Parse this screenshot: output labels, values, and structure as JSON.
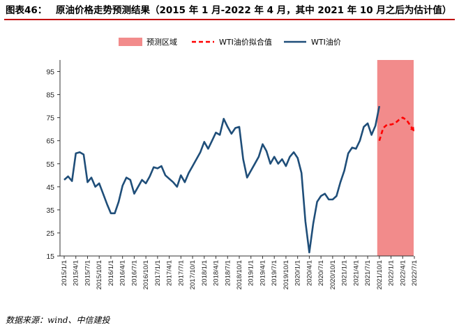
{
  "header": {
    "figure_label": "图表46：",
    "title": "原油价格走势预测结果（2015 年 1 月-2022 年 4 月，其中 2021 年 10 月之后为估计值）"
  },
  "legend": {
    "forecast_region": "预测区域",
    "wti_fitted": "WTI油价拟合值",
    "wti_price": "WTI油价"
  },
  "source": "数据来源：wind、中信建投",
  "colors": {
    "title_rule": "#c00000",
    "forecast_region": "#f28b8b",
    "wti_fitted": "#ff0000",
    "wti_price": "#1f4e79"
  },
  "chart_data": {
    "type": "line",
    "title": "",
    "xlabel": "",
    "ylabel": "",
    "ylim": [
      15,
      100
    ],
    "yticks": [
      15,
      25,
      35,
      45,
      55,
      65,
      75,
      85,
      95
    ],
    "xtick_labels": [
      "2015/1/1",
      "2015/4/1",
      "2015/7/1",
      "2015/10/1",
      "2016/1/1",
      "2016/4/1",
      "2016/7/1",
      "2016/10/1",
      "2017/1/1",
      "2017/4/1",
      "2017/7/1",
      "2017/10/1",
      "2018/1/1",
      "2018/4/1",
      "2018/7/1",
      "2018/10/1",
      "2019/1/1",
      "2019/4/1",
      "2019/7/1",
      "2019/10/1",
      "2020/1/1",
      "2020/4/1",
      "2020/7/1",
      "2020/10/1",
      "2021/1/1",
      "2021/4/1",
      "2021/7/1",
      "2021/10/1",
      "2022/1/1",
      "2022/4/1",
      "2022/7/1"
    ],
    "forecast_region": {
      "start": "2021/10/1",
      "end": "2022/7/1"
    },
    "series": [
      {
        "name": "WTI油价",
        "style": "solid",
        "x": [
          "2015/1",
          "2015/2",
          "2015/3",
          "2015/4",
          "2015/5",
          "2015/6",
          "2015/7",
          "2015/8",
          "2015/9",
          "2015/10",
          "2015/11",
          "2015/12",
          "2016/1",
          "2016/2",
          "2016/3",
          "2016/4",
          "2016/5",
          "2016/6",
          "2016/7",
          "2016/8",
          "2016/9",
          "2016/10",
          "2016/11",
          "2016/12",
          "2017/1",
          "2017/2",
          "2017/3",
          "2017/4",
          "2017/5",
          "2017/6",
          "2017/7",
          "2017/8",
          "2017/9",
          "2017/10",
          "2017/11",
          "2017/12",
          "2018/1",
          "2018/2",
          "2018/3",
          "2018/4",
          "2018/5",
          "2018/6",
          "2018/7",
          "2018/8",
          "2018/9",
          "2018/10",
          "2018/11",
          "2018/12",
          "2019/1",
          "2019/2",
          "2019/3",
          "2019/4",
          "2019/5",
          "2019/6",
          "2019/7",
          "2019/8",
          "2019/9",
          "2019/10",
          "2019/11",
          "2019/12",
          "2020/1",
          "2020/2",
          "2020/3",
          "2020/4",
          "2020/5",
          "2020/6",
          "2020/7",
          "2020/8",
          "2020/9",
          "2020/10",
          "2020/11",
          "2020/12",
          "2021/1",
          "2021/2",
          "2021/3",
          "2021/4",
          "2021/5",
          "2021/6",
          "2021/7",
          "2021/8",
          "2021/9",
          "2021/10"
        ],
        "values": [
          48,
          49.5,
          47.5,
          59.5,
          60,
          59,
          47,
          49,
          45,
          46.5,
          42,
          37.5,
          33.5,
          33.5,
          38.5,
          45.5,
          49,
          48,
          42,
          45,
          48,
          46.5,
          49.5,
          53.5,
          53,
          54,
          50,
          48.5,
          47,
          45,
          50,
          47,
          51,
          54,
          57,
          60,
          64.5,
          61.5,
          65,
          68.5,
          67.5,
          74.5,
          71,
          68,
          70.5,
          71,
          57,
          49,
          52,
          55,
          58,
          63.5,
          60.5,
          55,
          58,
          55,
          57,
          54,
          58,
          60,
          57.5,
          51,
          30,
          16.5,
          29,
          38.5,
          41,
          42,
          39.5,
          39.5,
          41,
          47,
          52,
          59.5,
          62,
          61.5,
          65,
          71,
          72.5,
          67.5,
          71.5,
          80
        ]
      },
      {
        "name": "WTI油价拟合值",
        "style": "dashed",
        "x": [
          "2021/10",
          "2021/11",
          "2021/12",
          "2022/1",
          "2022/2",
          "2022/3",
          "2022/4",
          "2022/5",
          "2022/6",
          "2022/7"
        ],
        "values": [
          65,
          70.5,
          72,
          72,
          72.5,
          74,
          75,
          74,
          71.5,
          69
        ]
      }
    ]
  }
}
